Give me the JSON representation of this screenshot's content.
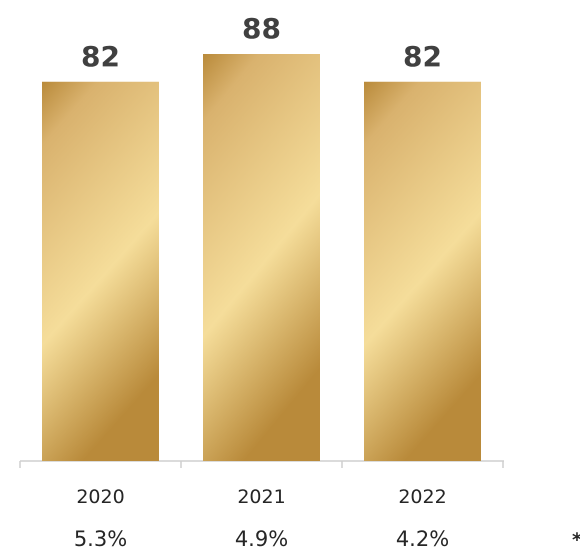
{
  "chart_data": {
    "type": "bar",
    "categories": [
      "2020",
      "2021",
      "2022"
    ],
    "values": [
      82,
      88,
      82
    ],
    "data_labels": [
      "82",
      "88",
      "82"
    ],
    "margin_label": "% רווח*",
    "margins": [
      "5.3%",
      "4.9%",
      "4.2%"
    ],
    "ylim": [
      0,
      88
    ],
    "grid": false,
    "legend": "none",
    "bar_color_light": "#f5dd9a",
    "bar_color_mid": "#d9b26e",
    "bar_color_dark": "#b98a3a"
  }
}
